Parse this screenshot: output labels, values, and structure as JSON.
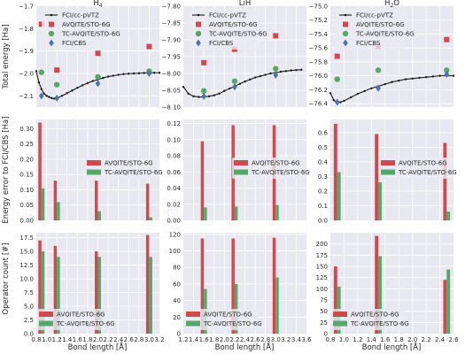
{
  "figure": {
    "ylabels": [
      "Total energy [Ha]",
      "Energy error to FCI/CBS [Ha]",
      "Operator count [#]"
    ],
    "xlabel": "Bond length [Å]"
  },
  "colors": {
    "fci_line": "#1a1a1a",
    "avqite": "#d1494e",
    "tc_avqite": "#55a868",
    "fci_cbs": "#4c72b0",
    "axes_bg": "#e8e8f0",
    "grid": "#ffffff"
  },
  "chart_data": [
    {
      "type": "line",
      "panel": "energy-h4",
      "title_base": "H",
      "title_sub": "4",
      "xlim": [
        0.8,
        3.2
      ],
      "ylim": [
        -2.15,
        -1.7
      ],
      "xticks": [
        0.8,
        1.0,
        1.2,
        1.4,
        1.6,
        1.8,
        2.0,
        2.2,
        2.4,
        2.6,
        2.8,
        3.0,
        3.2
      ],
      "xtick_labels": [
        "0.8",
        "1.0",
        "1.2",
        "1.4",
        "1.6",
        "1.8",
        "2.0",
        "2.2",
        "2.4",
        "2.6",
        "2.8",
        "3.0",
        "3.2"
      ],
      "yticks": [
        -2.1,
        -2.0,
        -1.9,
        -1.8,
        -1.7
      ],
      "ytick_labels": [
        "−2.1",
        "−2.0",
        "−1.9",
        "−1.8",
        "−1.7"
      ],
      "legend": {
        "position": "upper-right"
      },
      "series": [
        {
          "name": "FCI/cc-pVTZ",
          "kind": "line",
          "x": [
            0.8,
            0.85,
            0.9,
            0.95,
            1.0,
            1.05,
            1.1,
            1.15,
            1.2,
            1.3,
            1.4,
            1.5,
            1.6,
            1.7,
            1.8,
            1.9,
            2.0,
            2.1,
            2.2,
            2.3,
            2.4,
            2.5,
            2.6,
            2.7,
            2.8,
            2.9,
            3.0,
            3.1,
            3.2
          ],
          "y": [
            -1.99,
            -2.04,
            -2.07,
            -2.09,
            -2.1,
            -2.105,
            -2.11,
            -2.112,
            -2.11,
            -2.1,
            -2.088,
            -2.076,
            -2.064,
            -2.053,
            -2.043,
            -2.034,
            -2.027,
            -2.02,
            -2.014,
            -2.01,
            -2.006,
            -2.003,
            -2.001,
            -2.0,
            -1.999,
            -1.998,
            -1.997,
            -1.997,
            -1.997
          ]
        },
        {
          "name": "AVQITE/STO-6G",
          "kind": "square",
          "x": [
            0.9,
            1.2,
            2.0,
            3.0
          ],
          "y": [
            -1.78,
            -1.985,
            -1.91,
            -1.88
          ]
        },
        {
          "name": "TC-AVQITE/STO-6G",
          "kind": "circle",
          "x": [
            0.9,
            1.2,
            2.0,
            3.0
          ],
          "y": [
            -1.995,
            -2.05,
            -2.015,
            -1.99
          ]
        },
        {
          "name": "FCI/CBS",
          "kind": "diamond",
          "x": [
            0.9,
            1.2,
            2.0,
            3.0
          ],
          "y": [
            -2.1,
            -2.11,
            -2.045,
            -2.0
          ]
        }
      ]
    },
    {
      "type": "line",
      "panel": "energy-lih",
      "title_base": "LiH",
      "title_sub": "",
      "xlim": [
        1.2,
        3.6
      ],
      "ylim": [
        -8.1,
        -7.8
      ],
      "xticks": [
        1.2,
        1.4,
        1.6,
        1.8,
        2.0,
        2.2,
        2.4,
        2.6,
        2.8,
        3.0,
        3.2,
        3.4,
        3.6
      ],
      "xtick_labels": [
        "1.2",
        "1.4",
        "1.6",
        "1.8",
        "2.0",
        "2.2",
        "2.4",
        "2.6",
        "2.8",
        "3.0",
        "3.2",
        "3.4",
        "3.6"
      ],
      "yticks": [
        -8.1,
        -8.05,
        -8.0,
        -7.95,
        -7.9,
        -7.85,
        -7.8
      ],
      "ytick_labels": [
        "−8.10",
        "−8.05",
        "−8.00",
        "−7.95",
        "−7.90",
        "−7.85",
        "−7.80"
      ],
      "legend": {
        "position": "upper-right"
      },
      "series": [
        {
          "name": "FCI/cc-pVTZ",
          "kind": "line",
          "x": [
            1.2,
            1.3,
            1.4,
            1.5,
            1.6,
            1.7,
            1.8,
            1.9,
            2.0,
            2.1,
            2.2,
            2.3,
            2.4,
            2.5,
            2.6,
            2.7,
            2.8,
            2.9,
            3.0,
            3.1,
            3.2,
            3.3,
            3.4,
            3.5
          ],
          "y": [
            -8.04,
            -8.06,
            -8.068,
            -8.07,
            -8.07,
            -8.068,
            -8.065,
            -8.06,
            -8.052,
            -8.045,
            -8.038,
            -8.031,
            -8.024,
            -8.018,
            -8.012,
            -8.008,
            -8.004,
            -8.0,
            -7.998,
            -7.995,
            -7.993,
            -7.991,
            -7.99,
            -7.989
          ]
        },
        {
          "name": "AVQITE/STO-6G",
          "kind": "square",
          "x": [
            1.6,
            2.2,
            3.0
          ],
          "y": [
            -7.968,
            -7.928,
            -7.888
          ]
        },
        {
          "name": "TC-AVQITE/STO-6G",
          "kind": "circle",
          "x": [
            1.6,
            2.2,
            3.0
          ],
          "y": [
            -8.052,
            -8.023,
            -7.986
          ]
        },
        {
          "name": "FCI/CBS",
          "kind": "diamond",
          "x": [
            1.6,
            2.2,
            3.0
          ],
          "y": [
            -8.068,
            -8.04,
            -8.005
          ]
        }
      ]
    },
    {
      "type": "line",
      "panel": "energy-h2o",
      "title_base": "H",
      "title_sub": "2",
      "title_after": "O",
      "xlim": [
        0.8,
        2.6
      ],
      "ylim": [
        -76.45,
        -75.0
      ],
      "xticks": [
        0.8,
        1.0,
        1.2,
        1.4,
        1.6,
        1.8,
        2.0,
        2.2,
        2.4,
        2.6
      ],
      "xtick_labels": [
        "0.8",
        "1.0",
        "1.2",
        "1.4",
        "1.6",
        "1.8",
        "2.0",
        "2.2",
        "2.4",
        "2.6"
      ],
      "yticks": [
        -76.4,
        -76.2,
        -76.0,
        -75.8,
        -75.6,
        -75.4,
        -75.2,
        -75.0
      ],
      "ytick_labels": [
        "−76.4",
        "−76.2",
        "−76.0",
        "−75.8",
        "−75.6",
        "−75.4",
        "−75.2",
        "−75.0"
      ],
      "legend": {
        "position": "upper-right"
      },
      "series": [
        {
          "name": "FCI/cc-pVTZ",
          "kind": "line",
          "x": [
            0.8,
            0.85,
            0.9,
            0.95,
            1.0,
            1.1,
            1.2,
            1.3,
            1.4,
            1.5,
            1.6,
            1.7,
            1.8,
            1.9,
            2.0,
            2.1,
            2.2,
            2.3,
            2.4,
            2.5,
            2.6
          ],
          "y": [
            -76.25,
            -76.35,
            -76.39,
            -76.38,
            -76.36,
            -76.31,
            -76.26,
            -76.22,
            -76.18,
            -76.15,
            -76.12,
            -76.09,
            -76.07,
            -76.05,
            -76.04,
            -76.03,
            -76.02,
            -76.01,
            -76.0,
            -76.0,
            -76.0
          ]
        },
        {
          "name": "AVQITE/STO-6G",
          "kind": "square",
          "x": [
            0.9,
            1.5,
            2.5
          ],
          "y": [
            -75.72,
            -75.58,
            -75.48
          ]
        },
        {
          "name": "TC-AVQITE/STO-6G",
          "kind": "circle",
          "x": [
            0.9,
            1.5,
            2.5
          ],
          "y": [
            -76.05,
            -75.92,
            -75.92
          ]
        },
        {
          "name": "FCI/CBS",
          "kind": "diamond",
          "x": [
            0.9,
            1.5,
            2.5
          ],
          "y": [
            -76.38,
            -76.18,
            -75.98
          ]
        }
      ]
    },
    {
      "type": "bar",
      "panel": "error-h4",
      "xlim": [
        0.8,
        3.2
      ],
      "ylim": [
        0,
        0.33
      ],
      "bar_width": 0.06,
      "xticks": [
        0.8,
        1.0,
        1.2,
        1.4,
        1.6,
        1.8,
        2.0,
        2.2,
        2.4,
        2.6,
        2.8,
        3.0,
        3.2
      ],
      "xtick_labels": [
        "0.8",
        "1.0",
        "1.2",
        "1.4",
        "1.6",
        "1.8",
        "2.0",
        "2.2",
        "2.4",
        "2.6",
        "2.8",
        "3.0",
        "3.2"
      ],
      "yticks": [
        0.0,
        0.05,
        0.1,
        0.15,
        0.2,
        0.25,
        0.3
      ],
      "ytick_labels": [
        "0.00",
        "0.05",
        "0.10",
        "0.15",
        "0.20",
        "0.25",
        "0.30"
      ],
      "legend": {
        "position": "center-right"
      },
      "categories": [
        0.9,
        1.2,
        2.0,
        3.0
      ],
      "series": [
        {
          "name": "AVQITE/STO-6G",
          "values": [
            0.32,
            0.13,
            0.13,
            0.12
          ]
        },
        {
          "name": "TC-AVQITE/STO-6G",
          "values": [
            0.105,
            0.06,
            0.03,
            0.01
          ]
        }
      ]
    },
    {
      "type": "bar",
      "panel": "error-lih",
      "xlim": [
        1.2,
        3.6
      ],
      "ylim": [
        0,
        0.125
      ],
      "bar_width": 0.06,
      "xticks": [
        1.2,
        1.4,
        1.6,
        1.8,
        2.0,
        2.2,
        2.4,
        2.6,
        2.8,
        3.0,
        3.2,
        3.4,
        3.6
      ],
      "xtick_labels": [
        "1.2",
        "1.4",
        "1.6",
        "1.8",
        "2.0",
        "2.2",
        "2.4",
        "2.6",
        "2.8",
        "3.0",
        "3.2",
        "3.4",
        "3.6"
      ],
      "yticks": [
        0.0,
        0.02,
        0.04,
        0.06,
        0.08,
        0.1,
        0.12
      ],
      "ytick_labels": [
        "0.00",
        "0.02",
        "0.04",
        "0.06",
        "0.08",
        "0.10",
        "0.12"
      ],
      "legend": {
        "position": "center-right"
      },
      "categories": [
        1.6,
        2.2,
        3.0
      ],
      "series": [
        {
          "name": "AVQITE/STO-6G",
          "values": [
            0.098,
            0.118,
            0.118
          ]
        },
        {
          "name": "TC-AVQITE/STO-6G",
          "values": [
            0.016,
            0.017,
            0.019
          ]
        }
      ]
    },
    {
      "type": "bar",
      "panel": "error-h2o",
      "xlim": [
        0.8,
        2.6
      ],
      "ylim": [
        0,
        0.69
      ],
      "bar_width": 0.05,
      "xticks": [
        0.8,
        1.0,
        1.2,
        1.4,
        1.6,
        1.8,
        2.0,
        2.2,
        2.4,
        2.6
      ],
      "xtick_labels": [
        "0.8",
        "1.0",
        "1.2",
        "1.4",
        "1.6",
        "1.8",
        "2.0",
        "2.2",
        "2.4",
        "2.6"
      ],
      "yticks": [
        0.0,
        0.1,
        0.2,
        0.3,
        0.4,
        0.5,
        0.6
      ],
      "ytick_labels": [
        "0.0",
        "0.1",
        "0.2",
        "0.3",
        "0.4",
        "0.5",
        "0.6"
      ],
      "legend": {
        "position": "center-right"
      },
      "categories": [
        0.9,
        1.5,
        2.5
      ],
      "series": [
        {
          "name": "AVQITE/STO-6G",
          "values": [
            0.66,
            0.59,
            0.53
          ]
        },
        {
          "name": "TC-AVQITE/STO-6G",
          "values": [
            0.33,
            0.26,
            0.06
          ]
        }
      ]
    },
    {
      "type": "bar",
      "panel": "ops-h4",
      "xlim": [
        0.8,
        3.2
      ],
      "ylim": [
        0,
        18.4
      ],
      "bar_width": 0.06,
      "xticks": [
        0.8,
        1.0,
        1.2,
        1.4,
        1.6,
        1.8,
        2.0,
        2.2,
        2.4,
        2.6,
        2.8,
        3.0,
        3.2
      ],
      "xtick_labels": [
        "0.8",
        "1.0",
        "1.2",
        "1.4",
        "1.6",
        "1.8",
        "2.0",
        "2.2",
        "2.4",
        "2.6",
        "2.8",
        "3.0",
        "3.2"
      ],
      "yticks": [
        0.0,
        2.5,
        5.0,
        7.5,
        10.0,
        12.5,
        15.0,
        17.5
      ],
      "ytick_labels": [
        "0.0",
        "2.5",
        "5.0",
        "7.5",
        "10.0",
        "12.5",
        "15.0",
        "17.5"
      ],
      "legend": {
        "position": "lower-left"
      },
      "categories": [
        0.9,
        1.2,
        2.0,
        3.0
      ],
      "series": [
        {
          "name": "AVQITE/STO-6G",
          "values": [
            17,
            16,
            15,
            18
          ]
        },
        {
          "name": "TC-AVQITE/STO-6G",
          "values": [
            15,
            14,
            14,
            14
          ]
        }
      ]
    },
    {
      "type": "bar",
      "panel": "ops-lih",
      "xlim": [
        1.2,
        3.6
      ],
      "ylim": [
        0,
        122
      ],
      "bar_width": 0.06,
      "xticks": [
        1.2,
        1.4,
        1.6,
        1.8,
        2.0,
        2.2,
        2.4,
        2.6,
        2.8,
        3.0,
        3.2,
        3.4,
        3.6
      ],
      "xtick_labels": [
        "1.2",
        "1.4",
        "1.6",
        "1.8",
        "2.0",
        "2.2",
        "2.4",
        "2.6",
        "2.8",
        "3.0",
        "3.2",
        "3.4",
        "3.6"
      ],
      "yticks": [
        0,
        20,
        40,
        60,
        80,
        100,
        120
      ],
      "ytick_labels": [
        "0",
        "20",
        "40",
        "60",
        "80",
        "100",
        "120"
      ],
      "legend": {
        "position": "lower-left"
      },
      "categories": [
        1.6,
        2.2,
        3.0
      ],
      "series": [
        {
          "name": "AVQITE/STO-6G",
          "values": [
            115,
            115,
            116
          ]
        },
        {
          "name": "TC-AVQITE/STO-6G",
          "values": [
            54,
            60,
            68
          ]
        }
      ]
    },
    {
      "type": "bar",
      "panel": "ops-h2o",
      "xlim": [
        0.8,
        2.6
      ],
      "ylim": [
        0,
        225
      ],
      "bar_width": 0.05,
      "xticks": [
        0.8,
        1.0,
        1.2,
        1.4,
        1.6,
        1.8,
        2.0,
        2.2,
        2.4,
        2.6
      ],
      "xtick_labels": [
        "0.8",
        "1.0",
        "1.2",
        "1.4",
        "1.6",
        "1.8",
        "2.0",
        "2.2",
        "2.4",
        "2.6"
      ],
      "yticks": [
        0,
        25,
        50,
        75,
        100,
        125,
        150,
        175,
        200
      ],
      "ytick_labels": [
        "0",
        "25",
        "50",
        "75",
        "100",
        "125",
        "150",
        "175",
        "200"
      ],
      "legend": {
        "position": "lower-left"
      },
      "categories": [
        0.9,
        1.5,
        2.5
      ],
      "series": [
        {
          "name": "AVQITE/STO-6G",
          "values": [
            150,
            218,
            120
          ]
        },
        {
          "name": "TC-AVQITE/STO-6G",
          "values": [
            105,
            173,
            143
          ]
        }
      ]
    }
  ]
}
